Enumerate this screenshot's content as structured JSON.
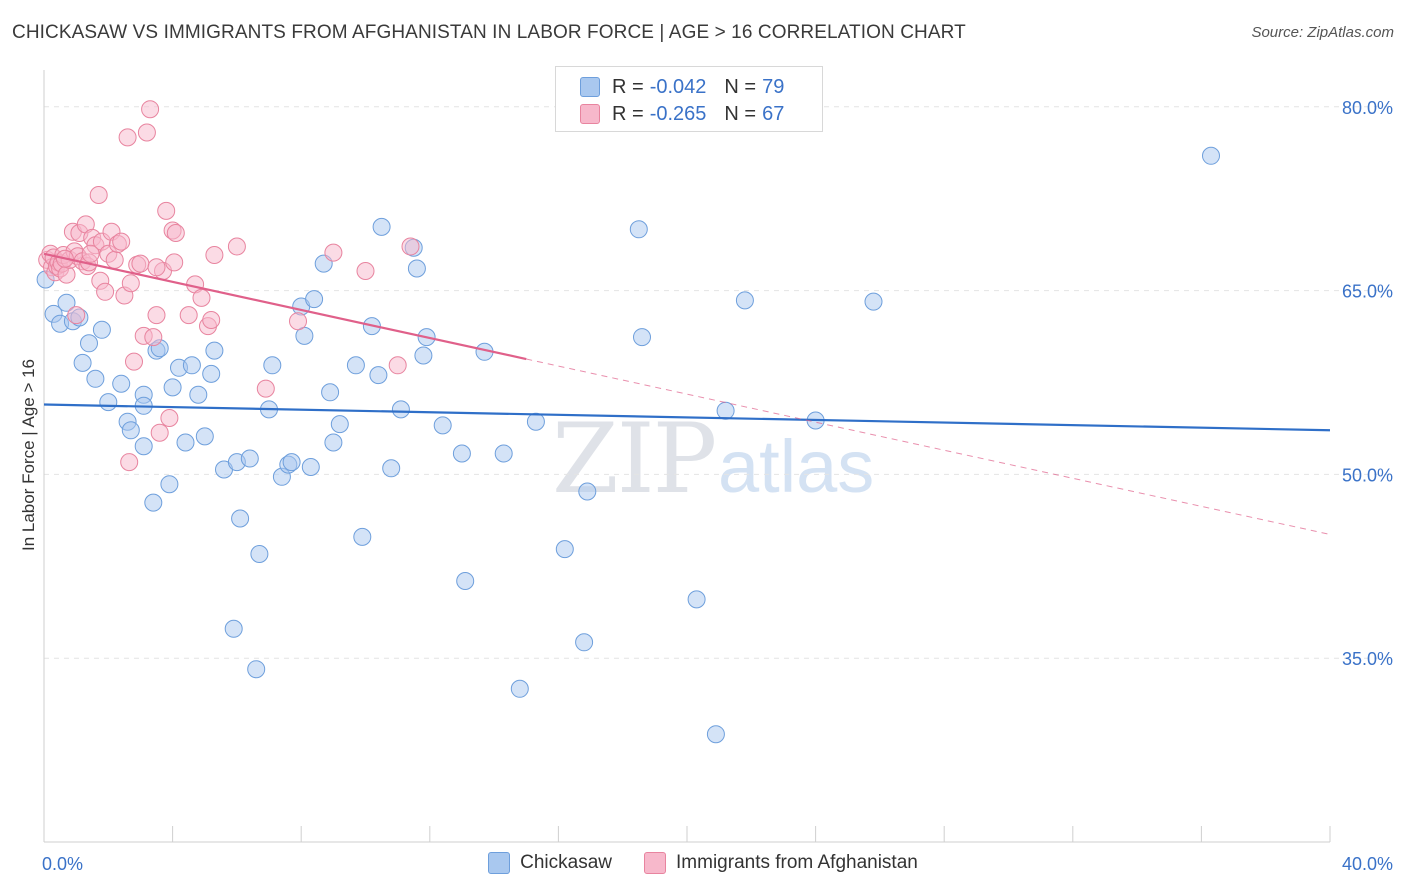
{
  "title": "CHICKASAW VS IMMIGRANTS FROM AFGHANISTAN IN LABOR FORCE | AGE > 16 CORRELATION CHART",
  "source": "Source: ZipAtlas.com",
  "watermark": {
    "zip": "ZIP",
    "atlas": "atlas"
  },
  "legend_top": [
    {
      "r_label": "R =",
      "r_value": "-0.042",
      "n_label": "N =",
      "n_value": "79",
      "color": "#a9c8ef",
      "edge": "#6e9fdc"
    },
    {
      "r_label": "R =",
      "r_value": "-0.265",
      "n_label": "N =",
      "n_value": "67",
      "color": "#f7b8cb",
      "edge": "#e8849f"
    }
  ],
  "chart_data": {
    "type": "scatter",
    "ylabel": "In Labor Force | Age > 16",
    "xlim": [
      0,
      40
    ],
    "ylim": [
      20,
      83
    ],
    "x_tick_labels": [
      {
        "value": 0,
        "label": "0.0%"
      },
      {
        "value": 40,
        "label": "40.0%"
      }
    ],
    "y_tick_labels": [
      {
        "value": 80,
        "label": "80.0%"
      },
      {
        "value": 65,
        "label": "65.0%"
      },
      {
        "value": 50,
        "label": "50.0%"
      },
      {
        "value": 35,
        "label": "35.0%"
      }
    ],
    "grid": true,
    "series": [
      {
        "name": "Chickasaw",
        "color": "#a9c8ef",
        "edge": "#6e9fdc",
        "line_color": "#2f6fc8",
        "trend": {
          "x": [
            0,
            40
          ],
          "y": [
            55.7,
            53.6
          ],
          "dashed_from": null
        },
        "points": [
          [
            0.3,
            63.1
          ],
          [
            0.5,
            62.3
          ],
          [
            0.7,
            64.0
          ],
          [
            0.9,
            62.5
          ],
          [
            1.1,
            62.8
          ],
          [
            1.2,
            59.1
          ],
          [
            1.4,
            60.7
          ],
          [
            1.6,
            57.8
          ],
          [
            1.8,
            61.8
          ],
          [
            2.0,
            55.9
          ],
          [
            2.4,
            57.4
          ],
          [
            2.6,
            54.3
          ],
          [
            2.7,
            53.6
          ],
          [
            3.1,
            56.5
          ],
          [
            3.1,
            55.6
          ],
          [
            3.1,
            52.3
          ],
          [
            3.4,
            47.7
          ],
          [
            3.5,
            60.1
          ],
          [
            3.6,
            60.3
          ],
          [
            3.9,
            49.2
          ],
          [
            4.0,
            57.1
          ],
          [
            4.2,
            58.7
          ],
          [
            4.4,
            52.6
          ],
          [
            4.6,
            58.9
          ],
          [
            4.8,
            56.5
          ],
          [
            5.0,
            53.1
          ],
          [
            5.2,
            58.2
          ],
          [
            5.3,
            60.1
          ],
          [
            5.6,
            50.4
          ],
          [
            5.9,
            37.4
          ],
          [
            6.0,
            51.0
          ],
          [
            6.1,
            46.4
          ],
          [
            6.4,
            51.3
          ],
          [
            6.6,
            34.1
          ],
          [
            6.7,
            43.5
          ],
          [
            7.0,
            55.3
          ],
          [
            7.1,
            58.9
          ],
          [
            7.4,
            49.8
          ],
          [
            7.6,
            50.8
          ],
          [
            7.7,
            51.0
          ],
          [
            8.0,
            63.7
          ],
          [
            8.1,
            61.3
          ],
          [
            8.3,
            50.6
          ],
          [
            8.4,
            64.3
          ],
          [
            8.7,
            67.2
          ],
          [
            8.9,
            56.7
          ],
          [
            9.0,
            52.6
          ],
          [
            9.2,
            54.1
          ],
          [
            9.7,
            58.9
          ],
          [
            9.9,
            44.9
          ],
          [
            10.2,
            62.1
          ],
          [
            10.4,
            58.1
          ],
          [
            10.5,
            70.2
          ],
          [
            10.8,
            50.5
          ],
          [
            11.1,
            55.3
          ],
          [
            11.5,
            68.5
          ],
          [
            11.6,
            66.8
          ],
          [
            11.8,
            59.7
          ],
          [
            11.9,
            61.2
          ],
          [
            12.4,
            54.0
          ],
          [
            13.0,
            51.7
          ],
          [
            13.1,
            41.3
          ],
          [
            13.7,
            60.0
          ],
          [
            14.3,
            51.7
          ],
          [
            14.8,
            32.5
          ],
          [
            15.3,
            54.3
          ],
          [
            16.2,
            43.9
          ],
          [
            16.8,
            36.3
          ],
          [
            16.9,
            48.6
          ],
          [
            18.5,
            70.0
          ],
          [
            18.6,
            61.2
          ],
          [
            20.3,
            39.8
          ],
          [
            20.9,
            28.8
          ],
          [
            21.2,
            55.2
          ],
          [
            21.8,
            64.2
          ],
          [
            24.0,
            54.4
          ],
          [
            25.8,
            64.1
          ],
          [
            36.3,
            76.0
          ],
          [
            0.05,
            65.9
          ]
        ]
      },
      {
        "name": "Immigrants from Afghanistan",
        "color": "#f7b8cb",
        "edge": "#e8849f",
        "line_color": "#e0608a",
        "trend": {
          "x": [
            0,
            40
          ],
          "y": [
            68.0,
            45.1
          ],
          "dashed_from": 15
        },
        "points": [
          [
            0.1,
            67.5
          ],
          [
            0.2,
            68.0
          ],
          [
            0.25,
            66.9
          ],
          [
            0.3,
            67.7
          ],
          [
            0.35,
            66.5
          ],
          [
            0.4,
            67.0
          ],
          [
            0.45,
            67.3
          ],
          [
            0.5,
            66.8
          ],
          [
            0.55,
            67.2
          ],
          [
            0.6,
            67.9
          ],
          [
            0.7,
            66.3
          ],
          [
            0.8,
            67.5
          ],
          [
            0.9,
            69.8
          ],
          [
            0.95,
            68.2
          ],
          [
            1.0,
            63.0
          ],
          [
            1.05,
            67.8
          ],
          [
            1.1,
            69.7
          ],
          [
            1.2,
            67.4
          ],
          [
            1.3,
            70.4
          ],
          [
            1.35,
            67.0
          ],
          [
            1.4,
            67.3
          ],
          [
            1.5,
            69.3
          ],
          [
            1.6,
            68.7
          ],
          [
            1.7,
            72.8
          ],
          [
            1.75,
            65.8
          ],
          [
            1.8,
            69.0
          ],
          [
            1.9,
            64.9
          ],
          [
            2.0,
            68.0
          ],
          [
            2.1,
            69.8
          ],
          [
            2.2,
            67.5
          ],
          [
            2.3,
            68.8
          ],
          [
            2.4,
            69.0
          ],
          [
            2.5,
            64.6
          ],
          [
            2.6,
            77.5
          ],
          [
            2.65,
            51.0
          ],
          [
            2.7,
            65.6
          ],
          [
            2.8,
            59.2
          ],
          [
            2.9,
            67.1
          ],
          [
            3.0,
            67.2
          ],
          [
            3.1,
            61.3
          ],
          [
            3.2,
            77.9
          ],
          [
            3.3,
            79.8
          ],
          [
            3.4,
            61.2
          ],
          [
            3.5,
            63.0
          ],
          [
            3.6,
            53.4
          ],
          [
            3.7,
            66.6
          ],
          [
            3.8,
            71.5
          ],
          [
            3.9,
            54.6
          ],
          [
            4.0,
            69.9
          ],
          [
            4.05,
            67.3
          ],
          [
            4.1,
            69.7
          ],
          [
            4.5,
            63.0
          ],
          [
            4.7,
            65.5
          ],
          [
            4.9,
            64.4
          ],
          [
            5.1,
            62.1
          ],
          [
            5.2,
            62.6
          ],
          [
            5.3,
            67.9
          ],
          [
            6.0,
            68.6
          ],
          [
            6.9,
            57.0
          ],
          [
            7.9,
            62.5
          ],
          [
            9.0,
            68.1
          ],
          [
            10.0,
            66.6
          ],
          [
            11.0,
            58.9
          ],
          [
            11.4,
            68.6
          ],
          [
            3.5,
            66.9
          ],
          [
            1.45,
            68.0
          ],
          [
            0.65,
            67.6
          ]
        ]
      }
    ]
  }
}
